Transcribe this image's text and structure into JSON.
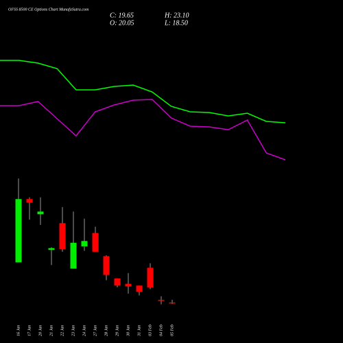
{
  "chart_data": [
    {
      "type": "line",
      "title": "OFSS 8500 CE Options Chart MunafaSutra.com",
      "ylim": [
        0,
        100
      ],
      "series": [
        {
          "color": "#00ff00",
          "values": [
            81,
            81,
            79,
            75,
            59.5,
            59.5,
            62,
            63,
            58,
            47.5,
            43.5,
            43,
            40.5,
            42.5,
            36.5,
            35.5
          ]
        },
        {
          "color": "#cc00cc",
          "values": [
            48,
            48,
            51,
            38.5,
            26,
            43.5,
            48.5,
            52,
            52.5,
            39,
            33,
            32.5,
            30.5,
            37.5,
            13.5,
            8.5
          ]
        }
      ]
    },
    {
      "type": "candlestick",
      "info": [
        "C: 19.65",
        "H: 23.10",
        "O: 20.05",
        "L: 18.50"
      ],
      "categories": [
        "16 Jan",
        "17 Jan",
        "20 Jan",
        "21 Jan",
        "22 Jan",
        "23 Jan",
        "24 Jan",
        "27 Jan",
        "28 Jan",
        "29 Jan",
        "30 Jan",
        "31 Jan",
        "03 Feb",
        "04 Feb",
        "05 Feb"
      ],
      "open": [
        65,
        136,
        119,
        79,
        109,
        58,
        83,
        98,
        72,
        47,
        41,
        39,
        59,
        23,
        20.05
      ],
      "high": [
        159,
        138,
        138,
        82,
        127,
        122,
        114,
        105,
        73,
        47,
        53,
        39,
        64,
        27,
        23.1
      ],
      "low": [
        65,
        113,
        107,
        62,
        77,
        58,
        78,
        77,
        45,
        37,
        30,
        28,
        35,
        18,
        18.5
      ],
      "close": [
        136,
        132,
        122,
        81,
        80,
        87,
        89,
        77,
        51,
        39,
        38,
        32,
        37,
        22,
        19.65
      ],
      "up_color": "#00ee00",
      "down_color": "#ff0000",
      "ylim": [
        0,
        200
      ]
    }
  ]
}
